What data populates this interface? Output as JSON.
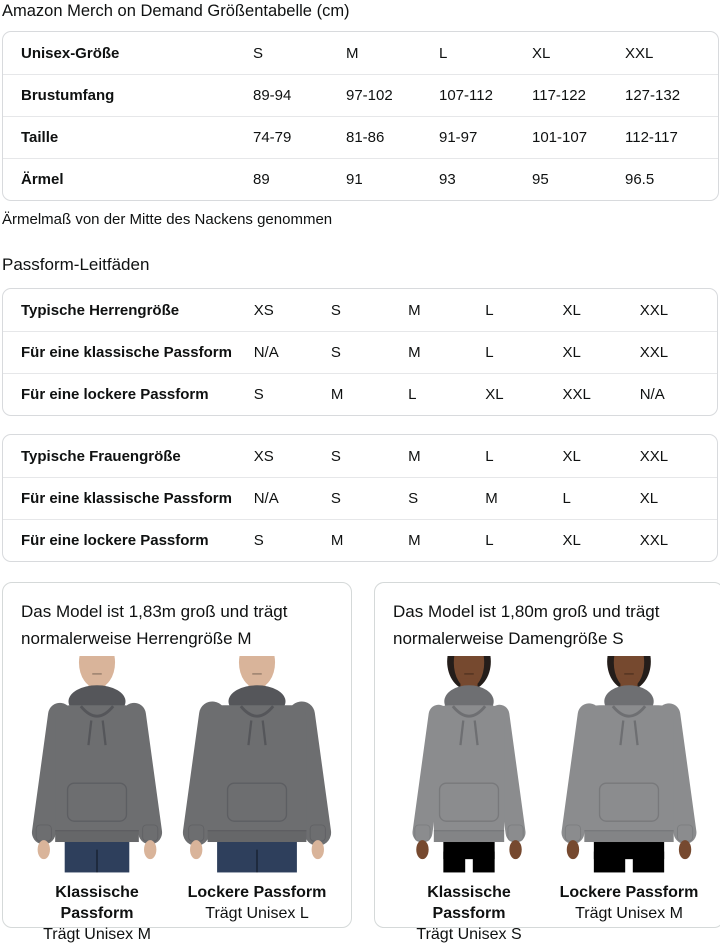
{
  "page_title": "Amazon Merch on Demand Größentabelle (cm)",
  "size_table": {
    "rows": [
      {
        "label": "Unisex-Größe",
        "values": [
          "S",
          "M",
          "L",
          "XL",
          "XXL"
        ]
      },
      {
        "label": "Brustumfang",
        "values": [
          "89-94",
          "97-102",
          "107-112",
          "117-122",
          "127-132"
        ]
      },
      {
        "label": "Taille",
        "values": [
          "74-79",
          "81-86",
          "91-97",
          "101-107",
          "112-117"
        ]
      },
      {
        "label": "Ärmel",
        "values": [
          "89",
          "91",
          "93",
          "95",
          "96.5"
        ]
      }
    ],
    "footnote": "Ärmelmaß von der Mitte des Nackens genommen"
  },
  "fit_guides": {
    "title": "Passform-Leitfäden",
    "tables": [
      {
        "rows": [
          {
            "label": "Typische Herrengröße",
            "values": [
              "XS",
              "S",
              "M",
              "L",
              "XL",
              "XXL"
            ]
          },
          {
            "label": "Für eine klassische Passform",
            "values": [
              "N/A",
              "S",
              "M",
              "L",
              "XL",
              "XXL"
            ]
          },
          {
            "label": "Für eine lockere Passform",
            "values": [
              "S",
              "M",
              "L",
              "XL",
              "XXL",
              "N/A"
            ]
          }
        ]
      },
      {
        "rows": [
          {
            "label": "Typische Frauengröße",
            "values": [
              "XS",
              "S",
              "M",
              "L",
              "XL",
              "XXL"
            ]
          },
          {
            "label": "Für eine klassische Passform",
            "values": [
              "N/A",
              "S",
              "S",
              "M",
              "L",
              "XL"
            ]
          },
          {
            "label": "Für eine lockere Passform",
            "values": [
              "S",
              "M",
              "M",
              "L",
              "XL",
              "XXL"
            ]
          }
        ]
      }
    ]
  },
  "model_cards": [
    {
      "heading": "Das Model ist 1,83m groß und trägt normalerweise Herrengröße M",
      "person": "male",
      "models": [
        {
          "fit": "classic",
          "fit_label": "Klassische Passform",
          "wears": "Trägt Unisex M"
        },
        {
          "fit": "loose",
          "fit_label": "Lockere Passform",
          "wears": "Trägt Unisex L"
        }
      ]
    },
    {
      "heading": "Das Model ist 1,80m groß und trägt normalerweise Damengröße S",
      "person": "female",
      "models": [
        {
          "fit": "classic",
          "fit_label": "Klassische Passform",
          "wears": "Trägt Unisex S"
        },
        {
          "fit": "loose",
          "fit_label": "Lockere Passform",
          "wears": "Trägt Unisex M"
        }
      ]
    }
  ],
  "colors": {
    "text": "#0f1111",
    "border": "#d8dadd",
    "divider": "#e6e7e9",
    "card_border": "#d5d9d9",
    "hoodie_male": "#6d6e70",
    "hoodie_male_dark": "#55565a",
    "hoodie_female": "#8b8c8e",
    "hoodie_female_dark": "#6e6f72",
    "skin_male": "#d9b49a",
    "skin_female": "#76492f",
    "hair_female": "#241d1a",
    "jeans_male": "#2e3f5c",
    "jeans_female": "#4c6social188"
  }
}
